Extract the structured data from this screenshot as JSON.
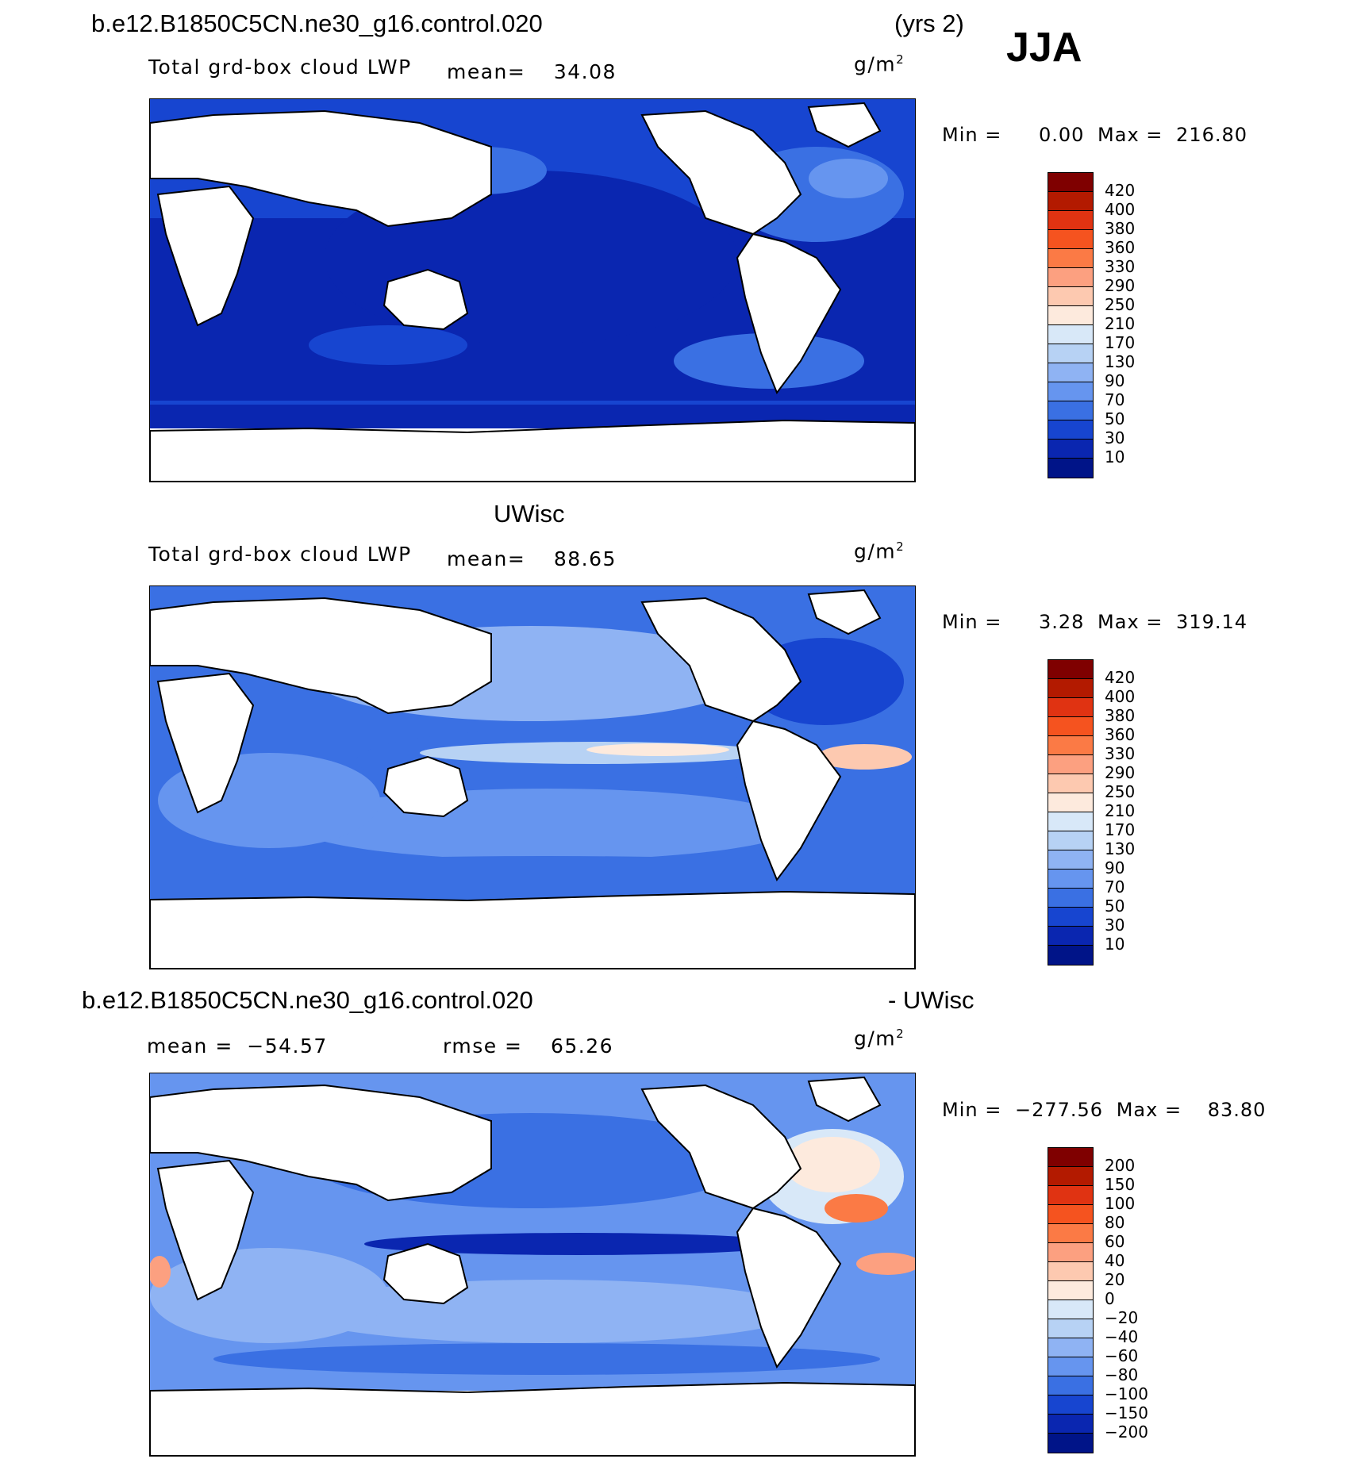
{
  "header": {
    "case_name": "b.e12.B1850C5CN.ne30_g16.control.020",
    "years": "(yrs 2)",
    "season": "JJA"
  },
  "panels": [
    {
      "title": "",
      "variable": "Total grd-box cloud LWP",
      "mean_label": "mean=",
      "mean_value": "34.08",
      "units": "g/m",
      "units_exp": "2",
      "min_label": "Min =",
      "min_value": "0.00",
      "max_label": "Max =",
      "max_value": "216.80",
      "colorbar_levels": [
        "420",
        "400",
        "380",
        "360",
        "330",
        "290",
        "250",
        "210",
        "170",
        "130",
        "90",
        "70",
        "50",
        "30",
        "10"
      ]
    },
    {
      "title": "UWisc",
      "variable": "Total grd-box cloud LWP",
      "mean_label": "mean=",
      "mean_value": "88.65",
      "units": "g/m",
      "units_exp": "2",
      "min_label": "Min =",
      "min_value": "3.28",
      "max_label": "Max =",
      "max_value": "319.14",
      "colorbar_levels": [
        "420",
        "400",
        "380",
        "360",
        "330",
        "290",
        "250",
        "210",
        "170",
        "130",
        "90",
        "70",
        "50",
        "30",
        "10"
      ]
    },
    {
      "title": "b.e12.B1850C5CN.ne30_g16.control.020",
      "title_right": "- UWisc",
      "mean_label": "mean =",
      "mean_value": "−54.57",
      "rmse_label": "rmse =",
      "rmse_value": "65.26",
      "units": "g/m",
      "units_exp": "2",
      "min_label": "Min =",
      "min_value": "−277.56",
      "max_label": "Max =",
      "max_value": "83.80",
      "colorbar_levels": [
        "200",
        "150",
        "100",
        "80",
        "60",
        "40",
        "20",
        "0",
        "−20",
        "−40",
        "−60",
        "−80",
        "−100",
        "−150",
        "−200"
      ]
    }
  ],
  "colors": {
    "colorbar": [
      "#7f0000",
      "#b31a00",
      "#e03312",
      "#f5531f",
      "#fb7a45",
      "#fca080",
      "#fdc9b0",
      "#fdeadd",
      "#d8e8f8",
      "#b7d2f4",
      "#8fb3f3",
      "#6695ef",
      "#3a70e3",
      "#1745d0",
      "#0a26b0",
      "#001488"
    ],
    "land": "#ffffff",
    "coast": "#000000"
  }
}
